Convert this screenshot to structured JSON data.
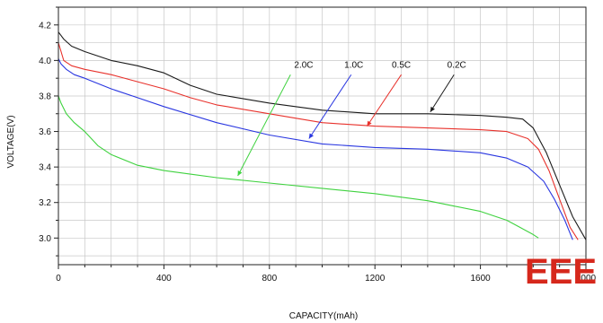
{
  "chart_data": {
    "type": "line",
    "xlabel": "CAPACITY(mAh)",
    "ylabel": "VOLTAGE(V)",
    "xlim": [
      0,
      2000
    ],
    "ylim": [
      2.85,
      4.3
    ],
    "x_ticks": [
      0,
      400,
      800,
      1200,
      1600,
      2000
    ],
    "x_tick_labels": [
      "0",
      "400",
      "800",
      "1200",
      "1600",
      "2000"
    ],
    "y_ticks": [
      3.0,
      3.2,
      3.4,
      3.6,
      3.8,
      4.0,
      4.2
    ],
    "y_tick_labels": [
      "3.0",
      "3.2",
      "3.4",
      "3.6",
      "3.8",
      "4.0",
      "4.2"
    ],
    "grid": true,
    "legend": "inline labels with arrows",
    "series": [
      {
        "name": "0.2C",
        "color": "#1a1a1a",
        "x": [
          0,
          20,
          50,
          100,
          200,
          300,
          400,
          500,
          600,
          800,
          1000,
          1200,
          1400,
          1600,
          1700,
          1760,
          1800,
          1850,
          1900,
          1950,
          2000
        ],
        "y": [
          4.16,
          4.12,
          4.08,
          4.05,
          4.0,
          3.97,
          3.93,
          3.86,
          3.81,
          3.76,
          3.72,
          3.7,
          3.7,
          3.69,
          3.68,
          3.67,
          3.62,
          3.48,
          3.3,
          3.12,
          2.99
        ]
      },
      {
        "name": "0.5C",
        "color": "#e8322c",
        "x": [
          0,
          20,
          50,
          100,
          200,
          300,
          400,
          500,
          600,
          800,
          1000,
          1200,
          1400,
          1600,
          1700,
          1780,
          1820,
          1860,
          1900,
          1940,
          1970
        ],
        "y": [
          4.1,
          4.0,
          3.97,
          3.95,
          3.92,
          3.88,
          3.84,
          3.79,
          3.75,
          3.7,
          3.65,
          3.63,
          3.62,
          3.61,
          3.6,
          3.56,
          3.5,
          3.38,
          3.22,
          3.06,
          2.99
        ]
      },
      {
        "name": "1.0C",
        "color": "#2936e0",
        "x": [
          0,
          10,
          30,
          60,
          100,
          200,
          300,
          400,
          600,
          800,
          1000,
          1200,
          1400,
          1600,
          1700,
          1780,
          1840,
          1880,
          1920,
          1950
        ],
        "y": [
          4.01,
          3.98,
          3.95,
          3.92,
          3.9,
          3.84,
          3.79,
          3.74,
          3.65,
          3.58,
          3.53,
          3.51,
          3.5,
          3.48,
          3.45,
          3.4,
          3.32,
          3.22,
          3.1,
          2.99
        ]
      },
      {
        "name": "2.0C",
        "color": "#3fd23f",
        "x": [
          0,
          10,
          30,
          60,
          100,
          150,
          200,
          300,
          400,
          500,
          600,
          800,
          1000,
          1200,
          1400,
          1500,
          1600,
          1700,
          1750,
          1800,
          1820
        ],
        "y": [
          3.8,
          3.76,
          3.7,
          3.65,
          3.6,
          3.52,
          3.47,
          3.41,
          3.38,
          3.36,
          3.34,
          3.31,
          3.28,
          3.25,
          3.21,
          3.18,
          3.15,
          3.1,
          3.06,
          3.02,
          3.0
        ]
      }
    ],
    "annotations": [
      {
        "text": "2.0C",
        "label_x": 930,
        "label_y": 3.96,
        "arrow_from": [
          880,
          3.92
        ],
        "arrow_to": [
          680,
          3.35
        ]
      },
      {
        "text": "1.0C",
        "label_x": 1120,
        "label_y": 3.96,
        "arrow_from": [
          1110,
          3.92
        ],
        "arrow_to": [
          950,
          3.56
        ]
      },
      {
        "text": "0.5C",
        "label_x": 1300,
        "label_y": 3.96,
        "arrow_from": [
          1300,
          3.92
        ],
        "arrow_to": [
          1170,
          3.63
        ]
      },
      {
        "text": "0.2C",
        "label_x": 1510,
        "label_y": 3.96,
        "arrow_from": [
          1500,
          3.92
        ],
        "arrow_to": [
          1410,
          3.71
        ]
      }
    ]
  },
  "watermark": {
    "text": "EEE"
  }
}
